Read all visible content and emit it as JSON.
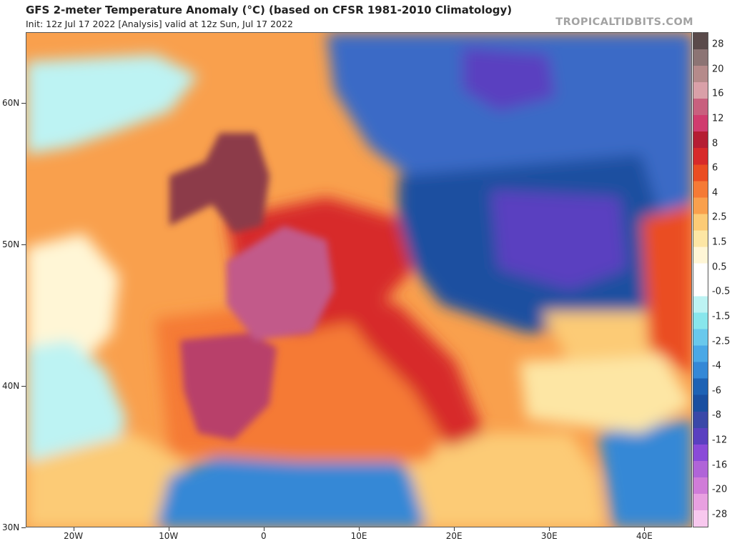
{
  "header": {
    "title": "GFS 2-meter Temperature Anomaly (°C) (based on CFSR 1981-2010 Climatology)",
    "subtitle": "Init: 12z Jul 17 2022   [Analysis]   valid at 12z Sun, Jul 17 2022",
    "brand": "TROPICALTIDBITS.COM"
  },
  "map": {
    "projection": "cylindrical lat-lon",
    "region": "Europe, North Africa and the Middle East",
    "lon_range": [
      -25,
      45
    ],
    "lat_range": [
      30,
      65
    ],
    "lat_labels": [
      {
        "lat": 60,
        "text": "60N"
      },
      {
        "lat": 50,
        "text": "50N"
      },
      {
        "lat": 40,
        "text": "40N"
      },
      {
        "lat": 30,
        "text": "30N"
      }
    ],
    "lon_labels": [
      {
        "lon": -20,
        "text": "20W"
      },
      {
        "lon": -10,
        "text": "10W"
      },
      {
        "lon": 0,
        "text": "0"
      },
      {
        "lon": 10,
        "text": "10E"
      },
      {
        "lon": 20,
        "text": "20E"
      },
      {
        "lon": 30,
        "text": "30E"
      },
      {
        "lon": 40,
        "text": "40E"
      }
    ]
  },
  "colorbar": {
    "labels": [
      "28",
      "20",
      "16",
      "12",
      "8",
      "6",
      "4",
      "2.5",
      "1.5",
      "0.5",
      "-0.5",
      "-1.5",
      "-2.5",
      "-4",
      "-6",
      "-8",
      "-12",
      "-16",
      "-20",
      "-28"
    ],
    "colors": [
      "#5a4a4a",
      "#8c7474",
      "#b58a8a",
      "#d9a0a8",
      "#c8607e",
      "#d03c6e",
      "#b51e33",
      "#d72a2a",
      "#ea4d22",
      "#f57a35",
      "#f9a04d",
      "#fccb76",
      "#fde6a4",
      "#fff6d6",
      "#ffffff",
      "#ffffff",
      "#bdf3f3",
      "#88e6ec",
      "#69c8ec",
      "#4aa8e6",
      "#3488d6",
      "#1e62b4",
      "#1a4fa0",
      "#3a48a8",
      "#5a40c0",
      "#8a4ad8",
      "#b064d8",
      "#d07cd8",
      "#e8a0e0",
      "#f8c8ee"
    ]
  },
  "regions": {
    "atlantic": "#f9a04d",
    "atlantic_cool": "#bdf3f3",
    "atlantic_neutral": "#fff6d6",
    "atlantic_warm": "#fccb76",
    "iberia": "#b8406a",
    "france": "#c25a8a",
    "britain": "#8c3a4a",
    "central_europe": "#d72a2a",
    "mediterranean": "#f57a35",
    "north_africa_cool": "#3488d6",
    "north_africa_warm": "#fccb76",
    "eastern_europe": "#1a4fa0",
    "eastern_core": "#5a40c0",
    "scandinavia": "#3a6ac6",
    "turkey": "#fde6a4",
    "black_sea": "#fccb76",
    "russia_se": "#ea4d22"
  }
}
